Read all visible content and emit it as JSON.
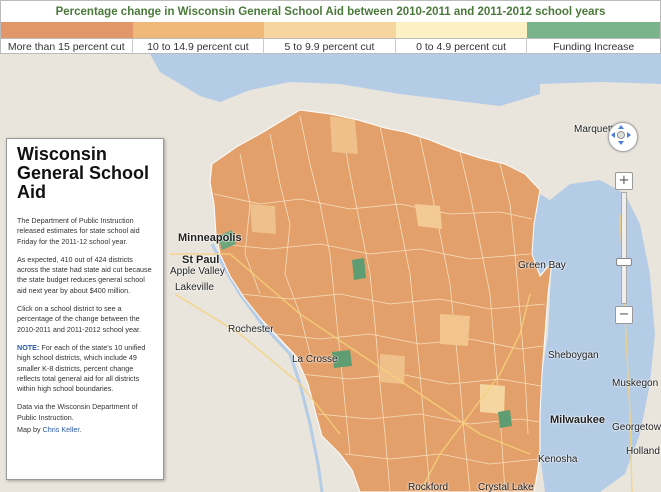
{
  "legend": {
    "title": "Percentage change in Wisconsin General School Aid between 2010-2011 and 2011-2012 school years",
    "categories": [
      {
        "label": "More than 15 percent cut",
        "color": "#e1976a"
      },
      {
        "label": "10 to 14.9 percent cut",
        "color": "#f0b979"
      },
      {
        "label": "5 to 9.9 percent cut",
        "color": "#f6d59e"
      },
      {
        "label": "0 to 4.9 percent cut",
        "color": "#fbf1c4"
      },
      {
        "label": "Funding Increase",
        "color": "#79b48a"
      }
    ]
  },
  "info_panel": {
    "title": "Wisconsin General School Aid",
    "paragraph1": "The Department of Public Instruction released estimates for state school aid Friday for the 2011-12 school year.",
    "paragraph2": "As expected, 410 out of 424 districts across the state had state aid cut because the state budget reduces general school aid next year by about $400 million.",
    "paragraph3": "Click on a school district to see a percentage of the change between the 2010-2011 and 2011-2012 school year.",
    "note_label": "NOTE:",
    "note_text": "For each of the state's 10 unified high school districts, which include 49 smaller K-8 districts, percent change reflects total general aid for all districts within high school boundaries.",
    "source": "Data via the Wisconsin Department of Public Instruction.",
    "credit_prefix": "Map by",
    "credit_name": "Chris Keller."
  },
  "places": [
    {
      "name": "Minneapolis",
      "big": true
    },
    {
      "name": "St Paul",
      "big": true
    },
    {
      "name": "Apple Valley",
      "big": false
    },
    {
      "name": "Lakeville",
      "big": false
    },
    {
      "name": "Rochester",
      "big": false
    },
    {
      "name": "La Crosse",
      "big": false
    },
    {
      "name": "Milwaukee",
      "big": true
    },
    {
      "name": "Kenosha",
      "big": false
    },
    {
      "name": "Rockford",
      "big": false
    },
    {
      "name": "Crystal Lake",
      "big": false
    },
    {
      "name": "Georgetown",
      "big": false
    },
    {
      "name": "Holland",
      "big": false
    },
    {
      "name": "Sheboygan",
      "big": false
    },
    {
      "name": "Muskegon",
      "big": false
    },
    {
      "name": "Green Bay",
      "big": false
    },
    {
      "name": "Marquette",
      "big": false
    }
  ],
  "controls": {
    "zoom_in": "+",
    "zoom_out": "−"
  }
}
